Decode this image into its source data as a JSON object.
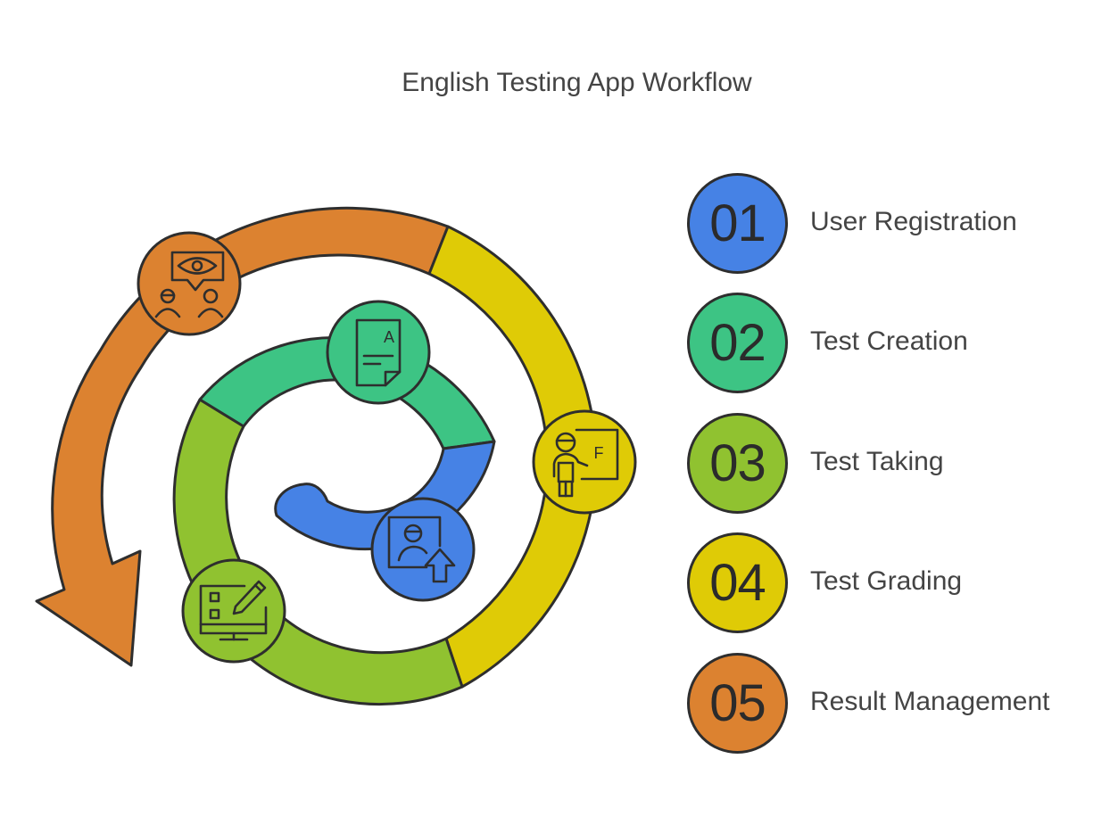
{
  "title": "English Testing App Workflow",
  "colors": {
    "blue": "#4682E5",
    "green": "#3DC484",
    "lime": "#90C230",
    "yellow": "#DFCB06",
    "orange": "#DC8230",
    "outline": "#2E2E2E"
  },
  "steps": [
    {
      "number": "01",
      "label": "User Registration",
      "color": "#4682E5",
      "icon": "user-upload-icon"
    },
    {
      "number": "02",
      "label": "Test Creation",
      "color": "#3DC484",
      "icon": "document-a-icon"
    },
    {
      "number": "03",
      "label": "Test Taking",
      "color": "#90C230",
      "icon": "computer-pencil-icon"
    },
    {
      "number": "04",
      "label": "Test Grading",
      "color": "#DFCB06",
      "icon": "teacher-grade-f-icon"
    },
    {
      "number": "05",
      "label": "Result Management",
      "color": "#DC8230",
      "icon": "eye-review-people-icon"
    }
  ],
  "icon_letters": {
    "document": "A",
    "grade": "F"
  }
}
